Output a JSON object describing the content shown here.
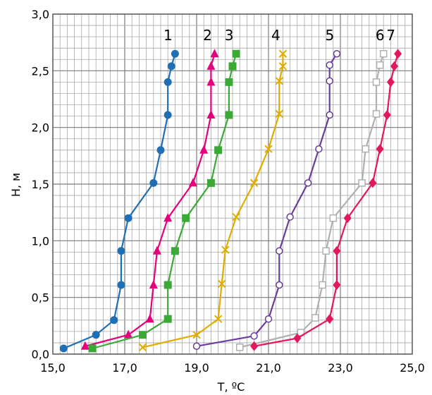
{
  "chart_data": {
    "type": "line",
    "xlabel": "T, ºC",
    "ylabel": "H, м",
    "xlim": [
      15.0,
      25.0
    ],
    "ylim": [
      0.0,
      3.0
    ],
    "x_ticks": [
      "15,0",
      "17,0",
      "19,0",
      "21,0",
      "23,0",
      "25,0"
    ],
    "y_ticks": [
      "0,0",
      "0,5",
      "1,0",
      "1,5",
      "2,0",
      "2,5",
      "3,0"
    ],
    "grid": true,
    "series": [
      {
        "name": "1",
        "color": "#1f6fb5",
        "marker": "circle",
        "points": [
          [
            15.3,
            0.05
          ],
          [
            16.2,
            0.17
          ],
          [
            16.7,
            0.3
          ],
          [
            16.9,
            0.61
          ],
          [
            16.9,
            0.91
          ],
          [
            17.1,
            1.2
          ],
          [
            17.8,
            1.51
          ],
          [
            18.0,
            1.8
          ],
          [
            18.2,
            2.11
          ],
          [
            18.2,
            2.4
          ],
          [
            18.3,
            2.54
          ],
          [
            18.4,
            2.65
          ]
        ]
      },
      {
        "name": "2",
        "color": "#e5007d",
        "marker": "triangle",
        "points": [
          [
            15.9,
            0.07
          ],
          [
            17.1,
            0.17
          ],
          [
            17.7,
            0.31
          ],
          [
            17.8,
            0.61
          ],
          [
            17.9,
            0.91
          ],
          [
            18.2,
            1.2
          ],
          [
            18.9,
            1.51
          ],
          [
            19.2,
            1.8
          ],
          [
            19.4,
            2.11
          ],
          [
            19.4,
            2.4
          ],
          [
            19.4,
            2.54
          ],
          [
            19.5,
            2.65
          ]
        ]
      },
      {
        "name": "3",
        "color": "#3aa935",
        "marker": "square",
        "points": [
          [
            16.1,
            0.05
          ],
          [
            17.5,
            0.17
          ],
          [
            18.2,
            0.31
          ],
          [
            18.2,
            0.61
          ],
          [
            18.4,
            0.91
          ],
          [
            18.7,
            1.2
          ],
          [
            19.4,
            1.51
          ],
          [
            19.6,
            1.8
          ],
          [
            19.9,
            2.11
          ],
          [
            19.9,
            2.4
          ],
          [
            20.0,
            2.54
          ],
          [
            20.1,
            2.65
          ]
        ]
      },
      {
        "name": "4",
        "color": "#e0ac00",
        "marker": "x",
        "points": [
          [
            17.5,
            0.06
          ],
          [
            19.0,
            0.17
          ],
          [
            19.6,
            0.31
          ],
          [
            19.7,
            0.62
          ],
          [
            19.8,
            0.92
          ],
          [
            20.1,
            1.21
          ],
          [
            20.6,
            1.51
          ],
          [
            21.0,
            1.81
          ],
          [
            21.3,
            2.12
          ],
          [
            21.3,
            2.41
          ],
          [
            21.4,
            2.54
          ],
          [
            21.4,
            2.65
          ]
        ]
      },
      {
        "name": "5",
        "color": "#6a3d9a",
        "marker": "circle-open",
        "points": [
          [
            19.0,
            0.07
          ],
          [
            20.6,
            0.16
          ],
          [
            21.0,
            0.31
          ],
          [
            21.3,
            0.61
          ],
          [
            21.3,
            0.91
          ],
          [
            21.6,
            1.21
          ],
          [
            22.1,
            1.51
          ],
          [
            22.4,
            1.81
          ],
          [
            22.7,
            2.11
          ],
          [
            22.7,
            2.41
          ],
          [
            22.7,
            2.55
          ],
          [
            22.9,
            2.65
          ]
        ]
      },
      {
        "name": "6",
        "color": "#b0b0b0",
        "marker": "square-open",
        "points": [
          [
            20.2,
            0.06
          ],
          [
            21.9,
            0.19
          ],
          [
            22.3,
            0.32
          ],
          [
            22.5,
            0.61
          ],
          [
            22.6,
            0.91
          ],
          [
            22.8,
            1.2
          ],
          [
            23.6,
            1.51
          ],
          [
            23.7,
            1.81
          ],
          [
            24.0,
            2.12
          ],
          [
            24.0,
            2.4
          ],
          [
            24.1,
            2.55
          ],
          [
            24.2,
            2.65
          ]
        ]
      },
      {
        "name": "7",
        "color": "#e2185b",
        "marker": "diamond",
        "points": [
          [
            20.6,
            0.07
          ],
          [
            21.8,
            0.14
          ],
          [
            22.7,
            0.31
          ],
          [
            22.9,
            0.61
          ],
          [
            22.9,
            0.91
          ],
          [
            23.2,
            1.2
          ],
          [
            23.9,
            1.51
          ],
          [
            24.1,
            1.81
          ],
          [
            24.3,
            2.11
          ],
          [
            24.4,
            2.4
          ],
          [
            24.5,
            2.54
          ],
          [
            24.6,
            2.65
          ]
        ]
      }
    ]
  }
}
